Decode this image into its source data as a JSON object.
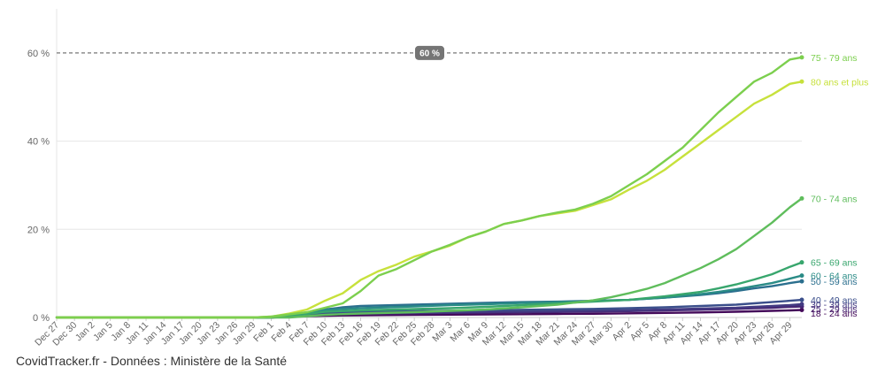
{
  "chart_data": {
    "type": "line",
    "title": "",
    "xlabel": "",
    "ylabel": "",
    "ylim": [
      0,
      70
    ],
    "yticks": [
      0,
      20,
      40,
      60
    ],
    "ytick_labels": [
      "0 %",
      "20 %",
      "40 %",
      "60 %"
    ],
    "reference_line": {
      "value": 60,
      "label": "60 %",
      "style": "dashed"
    },
    "x_start": "Dec 27",
    "x_end_day": 125,
    "x_ticks": [
      {
        "day": 0,
        "label": "Dec 27"
      },
      {
        "day": 3,
        "label": "Dec 30"
      },
      {
        "day": 6,
        "label": "Jan 2"
      },
      {
        "day": 9,
        "label": "Jan 5"
      },
      {
        "day": 12,
        "label": "Jan 8"
      },
      {
        "day": 15,
        "label": "Jan 11"
      },
      {
        "day": 18,
        "label": "Jan 14"
      },
      {
        "day": 21,
        "label": "Jan 17"
      },
      {
        "day": 24,
        "label": "Jan 20"
      },
      {
        "day": 27,
        "label": "Jan 23"
      },
      {
        "day": 30,
        "label": "Jan 26"
      },
      {
        "day": 33,
        "label": "Jan 29"
      },
      {
        "day": 36,
        "label": "Feb 1"
      },
      {
        "day": 39,
        "label": "Feb 4"
      },
      {
        "day": 42,
        "label": "Feb 7"
      },
      {
        "day": 45,
        "label": "Feb 10"
      },
      {
        "day": 48,
        "label": "Feb 13"
      },
      {
        "day": 51,
        "label": "Feb 16"
      },
      {
        "day": 54,
        "label": "Feb 19"
      },
      {
        "day": 57,
        "label": "Feb 22"
      },
      {
        "day": 60,
        "label": "Feb 25"
      },
      {
        "day": 63,
        "label": "Feb 28"
      },
      {
        "day": 66,
        "label": "Mar 3"
      },
      {
        "day": 69,
        "label": "Mar 6"
      },
      {
        "day": 72,
        "label": "Mar 9"
      },
      {
        "day": 75,
        "label": "Mar 12"
      },
      {
        "day": 78,
        "label": "Mar 15"
      },
      {
        "day": 81,
        "label": "Mar 18"
      },
      {
        "day": 84,
        "label": "Mar 21"
      },
      {
        "day": 87,
        "label": "Mar 24"
      },
      {
        "day": 90,
        "label": "Mar 27"
      },
      {
        "day": 93,
        "label": "Mar 30"
      },
      {
        "day": 96,
        "label": "Apr 2"
      },
      {
        "day": 99,
        "label": "Apr 5"
      },
      {
        "day": 102,
        "label": "Apr 8"
      },
      {
        "day": 105,
        "label": "Apr 11"
      },
      {
        "day": 108,
        "label": "Apr 14"
      },
      {
        "day": 111,
        "label": "Apr 17"
      },
      {
        "day": 114,
        "label": "Apr 20"
      },
      {
        "day": 117,
        "label": "Apr 23"
      },
      {
        "day": 120,
        "label": "Apr 26"
      },
      {
        "day": 123,
        "label": "Apr 29"
      }
    ],
    "series": [
      {
        "name": "75 - 79 ans",
        "color": "#7ccf4e",
        "points": [
          [
            0,
            0
          ],
          [
            33,
            0
          ],
          [
            36,
            0.2
          ],
          [
            39,
            0.7
          ],
          [
            42,
            1.2
          ],
          [
            45,
            2.2
          ],
          [
            48,
            3.2
          ],
          [
            51,
            6
          ],
          [
            54,
            9.5
          ],
          [
            57,
            11
          ],
          [
            60,
            13
          ],
          [
            63,
            15
          ],
          [
            66,
            16.5
          ],
          [
            69,
            18.2
          ],
          [
            72,
            19.5
          ],
          [
            75,
            21.2
          ],
          [
            78,
            22
          ],
          [
            81,
            23
          ],
          [
            84,
            23.8
          ],
          [
            87,
            24.5
          ],
          [
            90,
            25.8
          ],
          [
            93,
            27.5
          ],
          [
            96,
            30
          ],
          [
            99,
            32.5
          ],
          [
            102,
            35.5
          ],
          [
            105,
            38.5
          ],
          [
            108,
            42.5
          ],
          [
            111,
            46.5
          ],
          [
            114,
            50
          ],
          [
            117,
            53.5
          ],
          [
            120,
            55.5
          ],
          [
            123,
            58.5
          ],
          [
            125,
            59
          ]
        ]
      },
      {
        "name": "80 ans et plus",
        "color": "#c7e13c",
        "points": [
          [
            0,
            0
          ],
          [
            33,
            0
          ],
          [
            36,
            0.2
          ],
          [
            39,
            0.9
          ],
          [
            42,
            1.8
          ],
          [
            45,
            3.8
          ],
          [
            48,
            5.5
          ],
          [
            51,
            8.5
          ],
          [
            54,
            10.5
          ],
          [
            57,
            12
          ],
          [
            60,
            13.8
          ],
          [
            63,
            15
          ],
          [
            66,
            16.3
          ],
          [
            69,
            18.2
          ],
          [
            72,
            19.5
          ],
          [
            75,
            21.2
          ],
          [
            78,
            22
          ],
          [
            81,
            23
          ],
          [
            84,
            23.6
          ],
          [
            87,
            24.2
          ],
          [
            90,
            25.5
          ],
          [
            93,
            26.8
          ],
          [
            96,
            29
          ],
          [
            99,
            31
          ],
          [
            102,
            33.5
          ],
          [
            105,
            36.5
          ],
          [
            108,
            39.5
          ],
          [
            111,
            42.5
          ],
          [
            114,
            45.5
          ],
          [
            117,
            48.5
          ],
          [
            120,
            50.5
          ],
          [
            123,
            53
          ],
          [
            125,
            53.5
          ]
        ]
      },
      {
        "name": "70 - 74 ans",
        "color": "#5fbd5c",
        "points": [
          [
            0,
            0
          ],
          [
            39,
            0
          ],
          [
            42,
            0.3
          ],
          [
            45,
            0.6
          ],
          [
            51,
            0.9
          ],
          [
            60,
            1.2
          ],
          [
            66,
            1.5
          ],
          [
            72,
            1.8
          ],
          [
            78,
            2.3
          ],
          [
            84,
            2.9
          ],
          [
            90,
            3.9
          ],
          [
            93,
            4.6
          ],
          [
            96,
            5.5
          ],
          [
            99,
            6.5
          ],
          [
            102,
            7.8
          ],
          [
            105,
            9.5
          ],
          [
            108,
            11.2
          ],
          [
            111,
            13.2
          ],
          [
            114,
            15.5
          ],
          [
            117,
            18.5
          ],
          [
            120,
            21.5
          ],
          [
            123,
            25
          ],
          [
            125,
            27
          ]
        ]
      },
      {
        "name": "65 - 69 ans",
        "color": "#38a66d",
        "points": [
          [
            0,
            0
          ],
          [
            36,
            0
          ],
          [
            39,
            0.4
          ],
          [
            42,
            0.8
          ],
          [
            45,
            1.3
          ],
          [
            51,
            1.6
          ],
          [
            60,
            1.9
          ],
          [
            66,
            2.1
          ],
          [
            72,
            2.4
          ],
          [
            78,
            2.8
          ],
          [
            84,
            3.2
          ],
          [
            90,
            3.6
          ],
          [
            96,
            4
          ],
          [
            102,
            4.8
          ],
          [
            108,
            5.8
          ],
          [
            111,
            6.6
          ],
          [
            114,
            7.5
          ],
          [
            117,
            8.6
          ],
          [
            120,
            9.8
          ],
          [
            123,
            11.5
          ],
          [
            125,
            12.5
          ]
        ]
      },
      {
        "name": "60 - 64 ans",
        "color": "#2a8b86",
        "points": [
          [
            0,
            0
          ],
          [
            36,
            0
          ],
          [
            39,
            0.5
          ],
          [
            42,
            1
          ],
          [
            45,
            1.7
          ],
          [
            51,
            2.1
          ],
          [
            60,
            2.5
          ],
          [
            66,
            2.8
          ],
          [
            72,
            3
          ],
          [
            78,
            3.3
          ],
          [
            84,
            3.5
          ],
          [
            90,
            3.7
          ],
          [
            96,
            4
          ],
          [
            102,
            4.5
          ],
          [
            108,
            5.3
          ],
          [
            111,
            5.8
          ],
          [
            114,
            6.4
          ],
          [
            117,
            7.1
          ],
          [
            120,
            7.8
          ],
          [
            123,
            8.8
          ],
          [
            125,
            9.5
          ]
        ]
      },
      {
        "name": "50 - 59 ans",
        "color": "#2b6f8e",
        "points": [
          [
            0,
            0
          ],
          [
            36,
            0
          ],
          [
            39,
            0.6
          ],
          [
            42,
            1.1
          ],
          [
            45,
            1.8
          ],
          [
            48,
            2.3
          ],
          [
            51,
            2.6
          ],
          [
            60,
            2.9
          ],
          [
            66,
            3.1
          ],
          [
            72,
            3.3
          ],
          [
            78,
            3.5
          ],
          [
            84,
            3.6
          ],
          [
            90,
            3.8
          ],
          [
            96,
            4
          ],
          [
            102,
            4.5
          ],
          [
            108,
            5.1
          ],
          [
            111,
            5.5
          ],
          [
            114,
            6
          ],
          [
            117,
            6.6
          ],
          [
            120,
            7.1
          ],
          [
            123,
            7.8
          ],
          [
            125,
            8.2
          ]
        ]
      },
      {
        "name": "40 - 49 ans",
        "color": "#3b4f8b",
        "points": [
          [
            0,
            0
          ],
          [
            36,
            0
          ],
          [
            39,
            0.4
          ],
          [
            42,
            0.8
          ],
          [
            45,
            1.1
          ],
          [
            51,
            1.3
          ],
          [
            60,
            1.45
          ],
          [
            66,
            1.55
          ],
          [
            72,
            1.65
          ],
          [
            78,
            1.75
          ],
          [
            84,
            1.85
          ],
          [
            90,
            1.95
          ],
          [
            96,
            2.1
          ],
          [
            102,
            2.3
          ],
          [
            108,
            2.6
          ],
          [
            114,
            2.9
          ],
          [
            117,
            3.2
          ],
          [
            120,
            3.5
          ],
          [
            123,
            3.8
          ],
          [
            125,
            4
          ]
        ]
      },
      {
        "name": "30 - 39 ans",
        "color": "#433a82",
        "points": [
          [
            0,
            0
          ],
          [
            36,
            0
          ],
          [
            39,
            0.3
          ],
          [
            42,
            0.6
          ],
          [
            45,
            0.8
          ],
          [
            51,
            1
          ],
          [
            60,
            1.1
          ],
          [
            66,
            1.2
          ],
          [
            72,
            1.3
          ],
          [
            78,
            1.35
          ],
          [
            84,
            1.45
          ],
          [
            90,
            1.55
          ],
          [
            96,
            1.65
          ],
          [
            102,
            1.8
          ],
          [
            108,
            2
          ],
          [
            114,
            2.2
          ],
          [
            117,
            2.4
          ],
          [
            120,
            2.6
          ],
          [
            123,
            2.8
          ],
          [
            125,
            3
          ]
        ]
      },
      {
        "name": "25 - 29 ans",
        "color": "#472674",
        "points": [
          [
            0,
            0
          ],
          [
            36,
            0
          ],
          [
            39,
            0.25
          ],
          [
            42,
            0.5
          ],
          [
            45,
            0.7
          ],
          [
            51,
            0.85
          ],
          [
            60,
            0.95
          ],
          [
            66,
            1.05
          ],
          [
            72,
            1.1
          ],
          [
            78,
            1.2
          ],
          [
            84,
            1.25
          ],
          [
            90,
            1.35
          ],
          [
            96,
            1.45
          ],
          [
            102,
            1.6
          ],
          [
            108,
            1.75
          ],
          [
            114,
            1.95
          ],
          [
            117,
            2.1
          ],
          [
            120,
            2.2
          ],
          [
            123,
            2.4
          ],
          [
            125,
            2.5
          ]
        ]
      },
      {
        "name": "18 - 24 ans",
        "color": "#440a5a",
        "points": [
          [
            0,
            0
          ],
          [
            36,
            0
          ],
          [
            39,
            0.15
          ],
          [
            42,
            0.3
          ],
          [
            45,
            0.4
          ],
          [
            51,
            0.5
          ],
          [
            60,
            0.6
          ],
          [
            66,
            0.65
          ],
          [
            72,
            0.7
          ],
          [
            78,
            0.75
          ],
          [
            84,
            0.8
          ],
          [
            90,
            0.85
          ],
          [
            96,
            0.95
          ],
          [
            102,
            1.05
          ],
          [
            108,
            1.15
          ],
          [
            114,
            1.3
          ],
          [
            117,
            1.4
          ],
          [
            120,
            1.5
          ],
          [
            123,
            1.6
          ],
          [
            125,
            1.7
          ]
        ]
      }
    ]
  },
  "footer": {
    "credit": "CovidTracker.fr - Données : Ministère de la Santé"
  }
}
